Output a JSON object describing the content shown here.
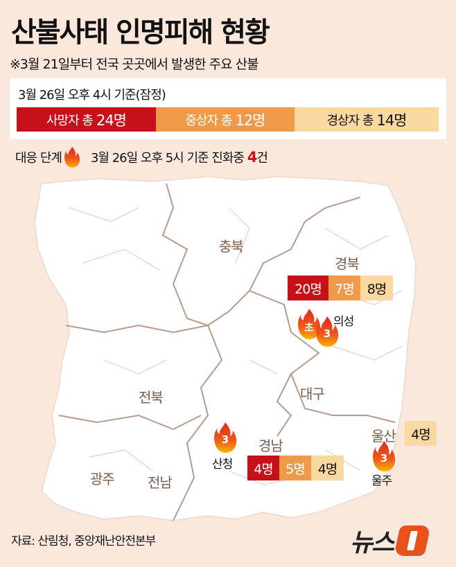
{
  "title": "산불사태 인명피해 현황",
  "subtitle": "※3월 21일부터 전국 곳곳에서 발생한 주요 산불",
  "summary": {
    "basis": "3월 26일 오후 4시 기준(잠정)",
    "bars": [
      {
        "label": "사망자 총",
        "value": "24명",
        "color": "#c8101a",
        "share": 0.48
      },
      {
        "label": "중상자 총",
        "value": "12명",
        "color": "#ef9a4a",
        "share": 0.24
      },
      {
        "label": "경상자 총",
        "value": "14명",
        "color": "#fad9a0",
        "share": 0.28
      }
    ]
  },
  "status": {
    "label": "대응 단계",
    "text": "3월 26일 오후 5시 기준 진화중",
    "count": "4",
    "unit": "건",
    "icon": "flame-icon"
  },
  "regions": [
    "충북",
    "경북",
    "전북",
    "대구",
    "경남",
    "광주",
    "전남",
    "울산"
  ],
  "badges": {
    "gyeongbuk": [
      "20명",
      "7명",
      "8명"
    ],
    "gyeongnam": [
      "4명",
      "5명",
      "4명"
    ],
    "ulsan": [
      "4명"
    ]
  },
  "fires": [
    {
      "place": "의성",
      "levels": [
        "초",
        "3"
      ]
    },
    {
      "place": "산청",
      "levels": [
        "3"
      ]
    },
    {
      "place": "울주",
      "levels": [
        "3"
      ]
    }
  ],
  "source": "자료: 산림청, 중앙재난안전본부",
  "logo": "뉴스1"
}
